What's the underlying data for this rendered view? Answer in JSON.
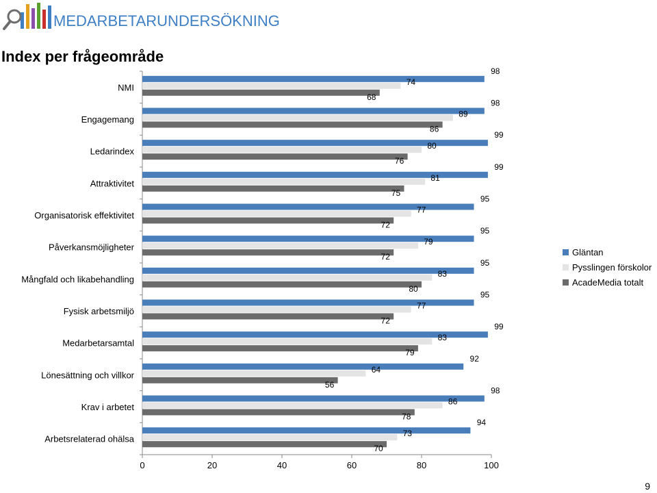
{
  "header": {
    "brand": "MEDARBETARUNDERSÖKNING",
    "brand_color": "#3f7fc4",
    "logo_icon": "bar-chart-magnifier-icon"
  },
  "page": {
    "title": "Index per frågeområde",
    "page_number": "9"
  },
  "chart_data": {
    "type": "bar",
    "orientation": "horizontal",
    "categories": [
      "NMI",
      "Engagemang",
      "Ledarindex",
      "Attraktivitet",
      "Organisatorisk effektivitet",
      "Påverkansmöjligheter",
      "Mångfald och likabehandling",
      "Fysisk arbetsmiljö",
      "Medarbetarsamtal",
      "Lönesättning och villkor",
      "Krav i arbetet",
      "Arbetsrelaterad ohälsa"
    ],
    "series": [
      {
        "name": "Gläntan",
        "color": "#4a7ebb",
        "values": [
          98,
          98,
          99,
          99,
          95,
          95,
          95,
          95,
          99,
          92,
          98,
          94
        ]
      },
      {
        "name": "Pysslingen förskolor",
        "color": "#e4e4e4",
        "values": [
          74,
          89,
          80,
          81,
          77,
          79,
          83,
          77,
          83,
          64,
          86,
          73
        ]
      },
      {
        "name": "AcadeMedia totalt",
        "color": "#6b6b6b",
        "values": [
          68,
          86,
          76,
          75,
          72,
          72,
          80,
          72,
          79,
          56,
          78,
          70
        ]
      }
    ],
    "xlim": [
      0,
      100
    ],
    "xticks": [
      0,
      20,
      40,
      60,
      80,
      100
    ],
    "legend": "right",
    "grid": false
  }
}
